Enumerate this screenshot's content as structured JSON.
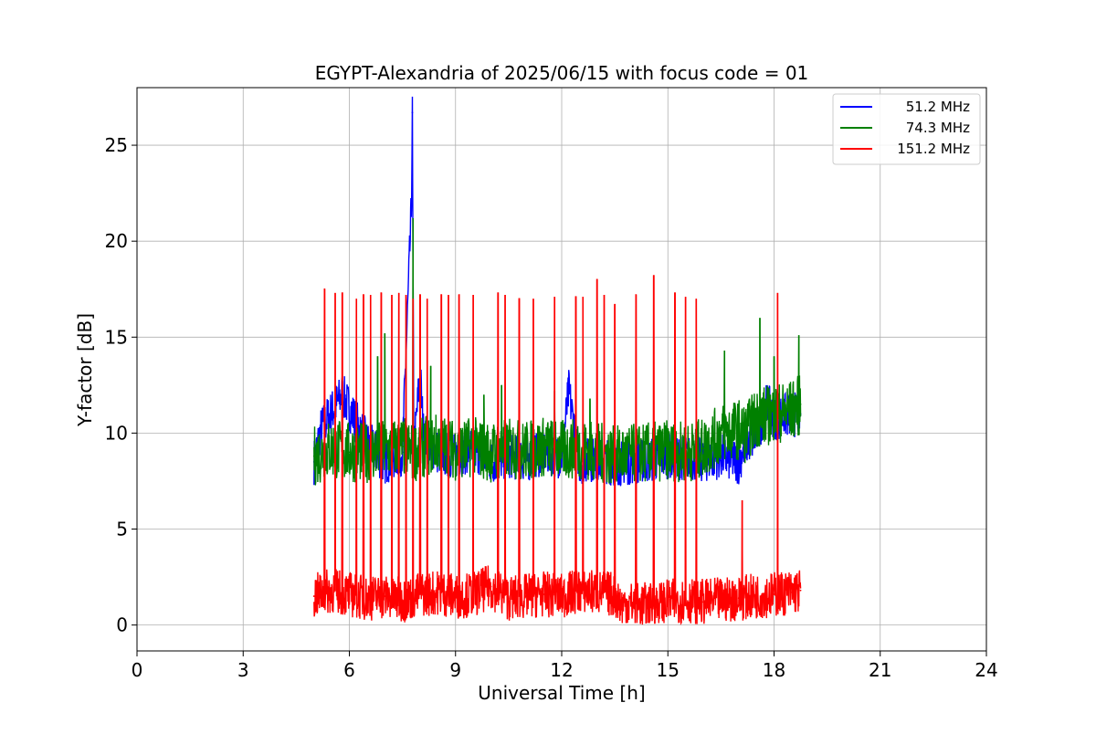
{
  "chart_data": {
    "type": "line",
    "title": "EGYPT-Alexandria of 2025/06/15 with focus code = 01",
    "xlabel": "Universal Time [h]",
    "ylabel": "Y-factor [dB]",
    "xlim": [
      0,
      24
    ],
    "ylim": [
      -1.35,
      28
    ],
    "xticks": [
      0,
      3,
      6,
      9,
      12,
      15,
      18,
      21,
      24
    ],
    "xtick_labels": [
      "0",
      "3",
      "6",
      "9",
      "12",
      "15",
      "18",
      "21",
      "24"
    ],
    "yticks": [
      0,
      5,
      10,
      15,
      20,
      25
    ],
    "ytick_labels": [
      "0",
      "5",
      "10",
      "15",
      "20",
      "25"
    ],
    "grid": true,
    "legend_position": "top-right",
    "x_range_of_data": [
      5.0,
      18.75
    ],
    "series": [
      {
        "name": "51.2 MHz",
        "color": "#0000ff",
        "x": [
          5.0,
          5.2,
          5.8,
          6.5,
          7.0,
          7.5,
          7.75,
          7.78,
          7.82,
          8.0,
          8.1,
          8.5,
          9.0,
          9.5,
          10.0,
          10.5,
          11.0,
          11.5,
          12.0,
          12.2,
          12.5,
          13.0,
          13.5,
          14.0,
          14.5,
          15.0,
          15.5,
          16.0,
          16.5,
          17.0,
          17.2,
          17.5,
          17.8,
          18.0,
          18.3,
          18.75
        ],
        "values": [
          8.5,
          10.2,
          12.0,
          9.5,
          8.5,
          9.0,
          21.6,
          26.7,
          9.0,
          13.2,
          9.8,
          9.0,
          8.8,
          9.2,
          8.5,
          8.8,
          8.6,
          9.0,
          8.8,
          12.2,
          8.5,
          8.7,
          8.4,
          8.5,
          8.6,
          8.8,
          8.7,
          8.6,
          8.8,
          8.5,
          9.5,
          9.8,
          11.5,
          10.8,
          10.9,
          11.0
        ]
      },
      {
        "name": "74.3 MHz",
        "color": "#008000",
        "x": [
          5.0,
          5.5,
          6.0,
          6.5,
          7.0,
          7.5,
          7.8,
          8.0,
          8.5,
          9.0,
          9.5,
          10.0,
          10.5,
          11.0,
          11.5,
          12.0,
          12.5,
          13.0,
          13.5,
          14.0,
          14.5,
          15.0,
          15.5,
          16.0,
          16.5,
          17.0,
          17.2,
          17.5,
          18.0,
          18.5,
          18.75
        ],
        "values": [
          8.8,
          9.2,
          9.0,
          9.0,
          9.1,
          9.3,
          9.0,
          9.2,
          9.5,
          9.1,
          9.3,
          9.0,
          9.2,
          9.1,
          9.3,
          9.1,
          9.2,
          9.0,
          8.8,
          8.9,
          9.0,
          9.1,
          9.0,
          9.2,
          10.0,
          10.2,
          10.0,
          10.8,
          11.0,
          11.2,
          11.5
        ],
        "spikes": [
          [
            5.8,
            12.0
          ],
          [
            6.8,
            14.0
          ],
          [
            7.0,
            15.2
          ],
          [
            7.8,
            21.2
          ],
          [
            8.3,
            13.5
          ],
          [
            9.8,
            12.0
          ],
          [
            10.3,
            12.5
          ],
          [
            11.8,
            12.2
          ],
          [
            12.8,
            11.8
          ],
          [
            16.6,
            14.3
          ],
          [
            17.6,
            16.0
          ],
          [
            18.0,
            14.0
          ],
          [
            18.7,
            15.1
          ]
        ]
      },
      {
        "name": "151.2 MHz",
        "color": "#ff0000",
        "x": [
          5.0,
          5.5,
          6.0,
          6.5,
          7.0,
          7.5,
          8.0,
          8.5,
          9.0,
          9.5,
          10.0,
          10.5,
          11.0,
          11.5,
          12.0,
          12.5,
          13.0,
          13.5,
          13.7,
          14.0,
          14.5,
          15.0,
          15.5,
          16.0,
          16.5,
          17.0,
          17.5,
          18.0,
          18.5,
          18.75
        ],
        "values": [
          1.5,
          1.8,
          1.6,
          1.4,
          1.5,
          1.3,
          1.6,
          1.7,
          1.5,
          1.6,
          2.0,
          1.4,
          1.5,
          1.6,
          1.5,
          1.8,
          1.7,
          1.6,
          1.0,
          1.1,
          1.0,
          1.2,
          1.3,
          1.2,
          1.3,
          1.4,
          1.5,
          1.6,
          1.7,
          1.8
        ],
        "spikes": [
          [
            5.3,
            17.5
          ],
          [
            5.6,
            17.3
          ],
          [
            5.8,
            17.3
          ],
          [
            6.2,
            17.0
          ],
          [
            6.4,
            17.2
          ],
          [
            6.6,
            17.2
          ],
          [
            6.9,
            17.3
          ],
          [
            7.2,
            17.2
          ],
          [
            7.4,
            17.3
          ],
          [
            7.6,
            17.2
          ],
          [
            7.8,
            17.0
          ],
          [
            8.0,
            17.2
          ],
          [
            8.2,
            17.0
          ],
          [
            8.6,
            17.2
          ],
          [
            8.8,
            17.2
          ],
          [
            9.1,
            17.2
          ],
          [
            9.5,
            17.2
          ],
          [
            10.2,
            17.3
          ],
          [
            10.4,
            17.2
          ],
          [
            10.8,
            17.0
          ],
          [
            11.2,
            17.0
          ],
          [
            11.8,
            17.1
          ],
          [
            12.4,
            17.1
          ],
          [
            12.6,
            17.1
          ],
          [
            13.0,
            18.0
          ],
          [
            13.2,
            17.2
          ],
          [
            13.5,
            16.7
          ],
          [
            14.1,
            17.2
          ],
          [
            14.6,
            18.2
          ],
          [
            15.2,
            17.3
          ],
          [
            15.5,
            17.1
          ],
          [
            15.8,
            17.0
          ],
          [
            17.1,
            6.5
          ],
          [
            18.1,
            17.3
          ]
        ]
      }
    ]
  }
}
